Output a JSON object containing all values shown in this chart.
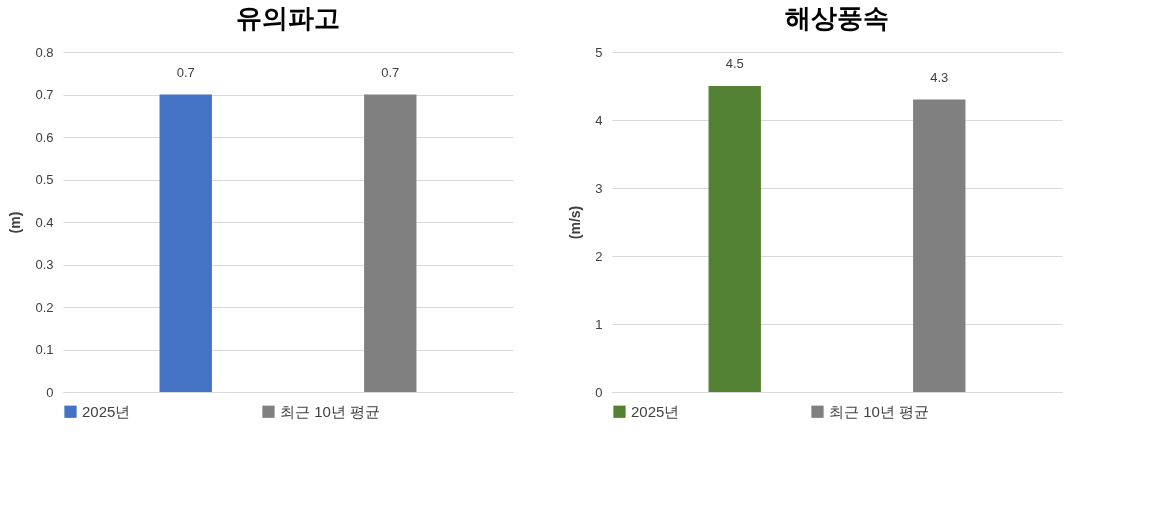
{
  "chart_data": [
    {
      "type": "bar",
      "title": "유의파고",
      "ylabel": "(m)",
      "categories": [
        null,
        null
      ],
      "series": [
        {
          "name": "2025년",
          "color": "#4472c4",
          "values": [
            0.7,
            null
          ]
        },
        {
          "name": "최근 10년 평균",
          "color": "#808080",
          "values": [
            null,
            0.7
          ]
        }
      ],
      "ylim": [
        0,
        0.8
      ],
      "yticks": [
        0,
        0.1,
        0.2,
        0.3,
        0.4,
        0.5,
        0.6,
        0.7,
        0.8
      ],
      "grid": "y",
      "legend": "bottom",
      "data_labels": true
    },
    {
      "type": "bar",
      "title": "해상풍속",
      "ylabel": "(m/s)",
      "categories": [
        null,
        null
      ],
      "series": [
        {
          "name": "2025년",
          "color": "#548235",
          "values": [
            4.5,
            null
          ]
        },
        {
          "name": "최근 10년 평균",
          "color": "#808080",
          "values": [
            null,
            4.3
          ]
        }
      ],
      "ylim": [
        0,
        5
      ],
      "yticks": [
        0,
        1,
        2,
        3,
        4,
        5
      ],
      "grid": "y",
      "legend": "bottom",
      "data_labels": true
    }
  ]
}
